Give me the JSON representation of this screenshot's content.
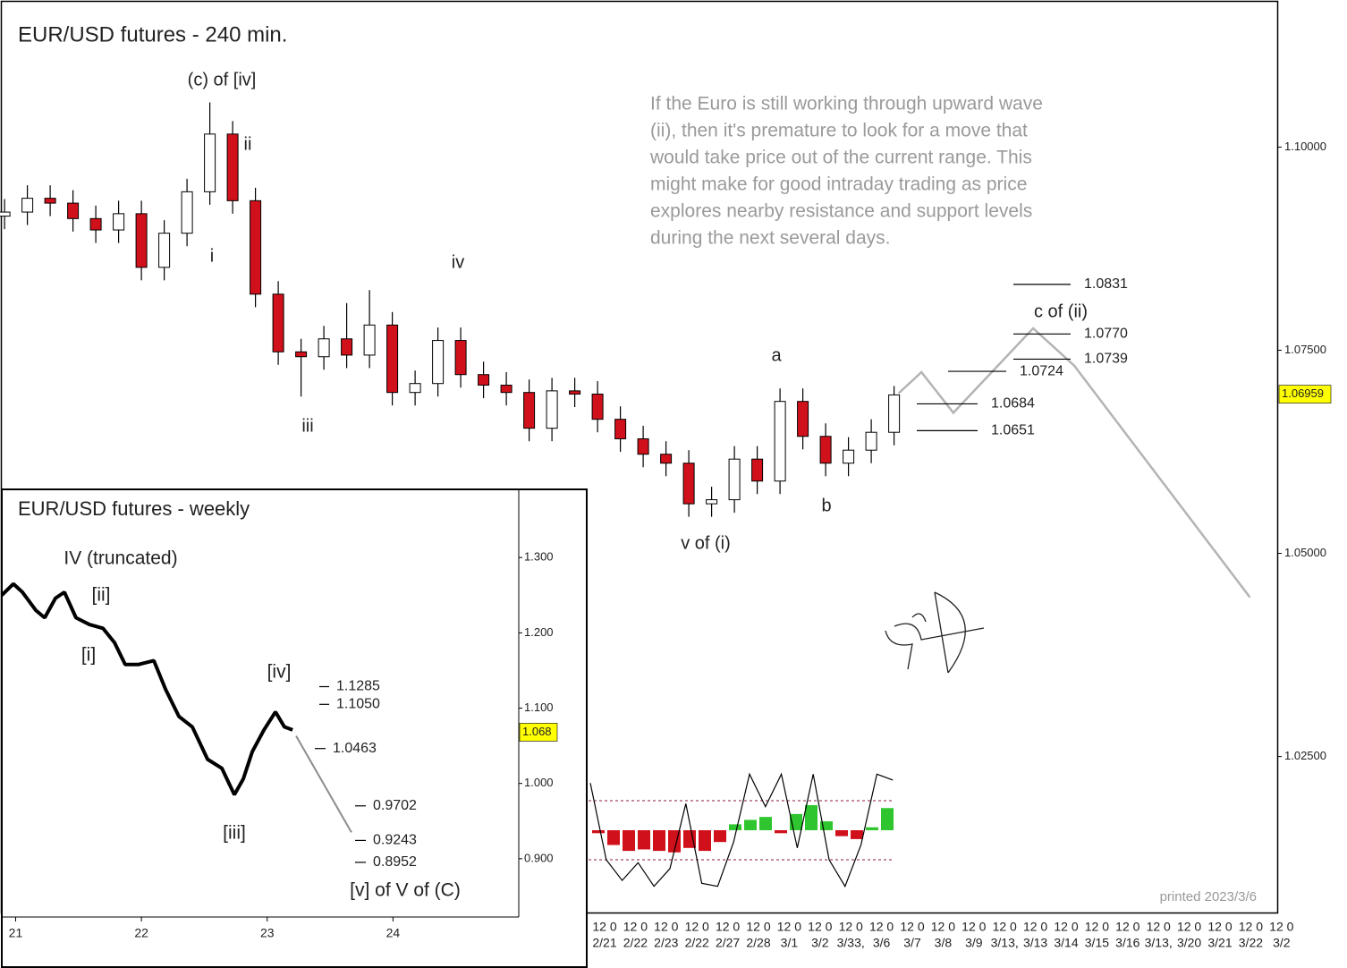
{
  "chart_data": [
    {
      "type": "candlestick",
      "title": "EUR/USD futures - 240 min.",
      "open": [
        1.0915,
        1.092,
        1.0937,
        1.0931,
        1.0912,
        1.0898,
        1.0918,
        1.0852,
        1.0894,
        1.0945,
        1.1016,
        1.0934,
        1.0819,
        1.0748,
        1.0742,
        1.0764,
        1.0744,
        1.0781,
        1.0698,
        1.0709,
        1.0762,
        1.072,
        1.0707,
        1.0698,
        1.0654,
        1.07,
        1.0696,
        1.0665,
        1.0641,
        1.0622,
        1.0611,
        1.0561,
        1.0566,
        1.0616,
        1.0589,
        1.0687,
        1.0644,
        1.0611,
        1.0627,
        1.0649
      ],
      "high": [
        1.0936,
        1.0953,
        1.0953,
        1.0947,
        1.0928,
        1.0934,
        1.0934,
        1.091,
        1.0961,
        1.1055,
        1.1032,
        1.095,
        1.0835,
        1.0764,
        1.078,
        1.0808,
        1.0824,
        1.0797,
        1.0725,
        1.0778,
        1.0778,
        1.0736,
        1.0723,
        1.0714,
        1.0716,
        1.0716,
        1.0712,
        1.0681,
        1.0657,
        1.0638,
        1.0627,
        1.0582,
        1.0632,
        1.0632,
        1.0703,
        1.0703,
        1.066,
        1.0643,
        1.0665,
        1.0706
      ],
      "low": [
        1.0899,
        1.0904,
        1.0915,
        1.0896,
        1.0882,
        1.0882,
        1.0836,
        1.0836,
        1.0878,
        1.0929,
        1.0918,
        1.0803,
        1.0732,
        1.0693,
        1.0726,
        1.0728,
        1.0728,
        1.0682,
        1.0682,
        1.0693,
        1.0704,
        1.0691,
        1.0682,
        1.0638,
        1.0638,
        1.068,
        1.0649,
        1.0625,
        1.0606,
        1.0595,
        1.0545,
        1.0545,
        1.055,
        1.0573,
        1.0573,
        1.0628,
        1.0595,
        1.0595,
        1.0611,
        1.0633
      ],
      "close": [
        1.092,
        1.0937,
        1.0931,
        1.0912,
        1.0898,
        1.0918,
        1.0852,
        1.0894,
        1.0945,
        1.1016,
        1.0934,
        1.0819,
        1.0748,
        1.0742,
        1.0764,
        1.0744,
        1.0781,
        1.0698,
        1.0709,
        1.0762,
        1.072,
        1.0707,
        1.0698,
        1.0654,
        1.07,
        1.0696,
        1.0665,
        1.0641,
        1.0622,
        1.0611,
        1.0561,
        1.0566,
        1.0616,
        1.0589,
        1.0687,
        1.0644,
        1.0611,
        1.0627,
        1.0649,
        1.0695
      ],
      "up_color": "#ffffff",
      "down_color": "#d0101a",
      "projection": {
        "color": "#b4b4b4",
        "x": [
          39.2,
          40.2,
          41.6,
          45.1,
          46.9,
          54.6
        ],
        "values": [
          1.0697,
          1.0723,
          1.0673,
          1.0777,
          1.0731,
          1.0446
        ]
      },
      "xlim": [
        -0.2,
        55.8
      ],
      "ylim": [
        1.0058,
        1.1181
      ],
      "yticks": [
        {
          "value": 1.1,
          "label": "1.10000"
        },
        {
          "value": 1.075,
          "label": "1.07500"
        },
        {
          "value": 1.05,
          "label": "1.05000"
        },
        {
          "value": 1.025,
          "label": "1.02500"
        }
      ],
      "last_price": 1.06959,
      "levels": [
        1.0831,
        {
          "value": 1.077,
          "label": "1.0770"
        },
        1.0739,
        1.0724,
        1.0684,
        1.0651
      ],
      "annotations": [
        "(c) of [iv]",
        "ii",
        "i",
        "iv",
        "iii",
        "a",
        "b",
        "v of (i)",
        "c of (ii)"
      ],
      "commentary": [
        "If the Euro is still working through upward wave",
        "(ii), then it's premature to look for a move that",
        "would take price out of the current range. This",
        "might make for good intraday trading as price",
        "explores nearby resistance and support levels",
        "during the next several days."
      ],
      "x_hour_labels": [
        "12 0",
        "12 0",
        "12 0",
        "12 0",
        "12 0",
        "12 0",
        "12 0",
        "12 0",
        "12 0",
        "12 0",
        "12 0",
        "12 0",
        "12 0",
        "12 0",
        "12 0",
        "12 0",
        "12 0",
        "12 0",
        "12 0",
        "12 0",
        "12 0",
        "12 0",
        "12 0"
      ],
      "x_date_labels": [
        "2/21",
        "2/22",
        "2/23",
        "2/22",
        "2/27",
        "2/28",
        "3/1",
        "3/2",
        "3/33,",
        "3/6",
        "3/7",
        "3/8",
        "3/9",
        "3/13,",
        "3/13",
        "3/14",
        "3/15",
        "3/16",
        "3/13,",
        "3/20",
        "3/21",
        "3/22",
        "3/2"
      ],
      "oscillator": {
        "levels": [
          1,
          -1
        ],
        "histogram": [
          -0.1,
          -0.5,
          -0.7,
          -0.65,
          -0.7,
          -0.75,
          -0.6,
          -0.7,
          -0.4,
          0.2,
          0.35,
          0.45,
          -0.1,
          0.55,
          0.85,
          0.3,
          -0.2,
          -0.3,
          0.1,
          0.75
        ],
        "line": [
          1.6,
          -1.0,
          -1.7,
          -1.1,
          -1.9,
          -1.3,
          0.9,
          -1.8,
          -1.9,
          -0.4,
          1.9,
          0.8,
          1.9,
          -0.6,
          1.9,
          -1.0,
          -1.9,
          -0.5,
          1.9,
          1.7
        ],
        "up_color": "#2ec52e",
        "down_color": "#d0101a"
      },
      "footnote": "printed 2023/3/6"
    },
    {
      "type": "line",
      "title": "EUR/USD futures - weekly",
      "x": [
        20.89,
        20.982,
        21.054,
        21.16,
        21.231,
        21.317,
        21.388,
        21.48,
        21.587,
        21.694,
        21.786,
        21.871,
        21.978,
        22.099,
        22.192,
        22.298,
        22.405,
        22.526,
        22.64,
        22.739,
        22.81,
        22.881,
        22.974,
        23.066,
        23.137,
        23.202
      ],
      "values": [
        1.25,
        1.265,
        1.254,
        1.23,
        1.22,
        1.246,
        1.254,
        1.22,
        1.211,
        1.206,
        1.187,
        1.158,
        1.158,
        1.163,
        1.125,
        1.089,
        1.075,
        1.032,
        1.02,
        0.985,
        1.006,
        1.042,
        1.071,
        1.095,
        1.075,
        1.071
      ],
      "color": "#000000",
      "projection": {
        "color": "#8c8c8c",
        "x": [
          23.23,
          23.67
        ],
        "values": [
          1.063,
          0.935
        ]
      },
      "xlim": [
        20.89,
        25.0
      ],
      "ylim": [
        0.8226,
        1.3905
      ],
      "xticks": [
        21,
        22,
        23,
        24
      ],
      "yticks": [
        {
          "value": 1.3,
          "label": "1.300"
        },
        {
          "value": 1.2,
          "label": "1.200"
        },
        {
          "value": 1.1,
          "label": "1.100"
        },
        {
          "value": 1.0,
          "label": "1.000"
        },
        {
          "value": 0.9,
          "label": "0.900"
        }
      ],
      "last_price": 1.068,
      "levels": [
        1.1285,
        {
          "value": 1.105,
          "label": "1.1050"
        },
        1.0463,
        0.9702,
        0.9243,
        0.8952
      ],
      "annotations": [
        "IV  (truncated)",
        "[ii]",
        "[i]",
        "[iv]",
        "[iii]",
        "[v] of V of (C)"
      ]
    }
  ]
}
